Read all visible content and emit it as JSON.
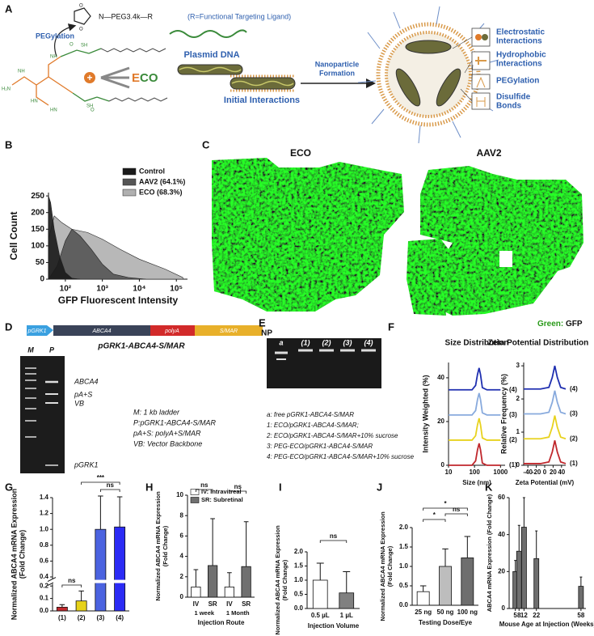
{
  "panel_labels": [
    "A",
    "B",
    "C",
    "D",
    "E",
    "F",
    "G",
    "H",
    "I",
    "J",
    "K"
  ],
  "panel_a": {
    "peg_label": "N—PEG3.4k—R",
    "ligand_note": "(R=Functional Targeting Ligand)",
    "pegylation": "PEGylation",
    "charge": "+",
    "eco_e": "E",
    "eco_co": "CO",
    "chem": [
      "O",
      "O",
      "NH",
      "HN",
      "NH",
      "HN",
      "SH",
      "SH",
      "H₂N",
      "O",
      "O"
    ],
    "plasmid": "Plasmid DNA",
    "initial": "Initial Interactions",
    "formation": [
      "Nanoparticle",
      "Formation"
    ],
    "interactions": [
      [
        "Electrostatic",
        "Interactions"
      ],
      [
        "Hydrophobic",
        "Interactions"
      ],
      [
        "PEGylation"
      ],
      [
        "Disulfide",
        "Bonds"
      ]
    ]
  },
  "panel_c": {
    "eco": "ECO",
    "aav2": "AAV2",
    "green": "Green:",
    "gfp": "GFP"
  },
  "panel_d": {
    "construct": [
      "pGRK1",
      "ABCA4",
      "polyA",
      "S/MAR"
    ],
    "title": "pGRK1-ABCA4-S/MAR",
    "lanes": [
      "M",
      "P"
    ],
    "bands": [
      "ABCA4",
      "pA+S",
      "VB",
      "pGRK1"
    ],
    "legend": [
      "M: 1 kb ladder",
      "P:pGRK1-ABCA4-S/MAR",
      "pA+S: polyA+S/MAR",
      "VB: Vector Backbone"
    ]
  },
  "panel_e": {
    "np": "NP",
    "lanes": [
      "a",
      "(1)",
      "(2)",
      "(3)",
      "(4)"
    ],
    "legend": [
      "a: free pGRK1-ABCA4-S/MAR",
      "1: ECO/pGRK1-ABCA4-S/MAR;",
      "2: ECO/pGRK1-ABCA4-S/MAR+10% sucrose",
      "3: PEG-ECO/pGRK1-ABCA4-S/MAR",
      "4: PEG-ECO/pGRK1-ABCA4-S/MAR+10% sucrose"
    ]
  },
  "chart_data": [
    {
      "type": "area",
      "x_label": "GFP Fluorescent Intensity",
      "y_label": [
        "Cell Count"
      ],
      "xlog": true,
      "xlim": [
        35,
        200000
      ],
      "ylim": [
        0,
        260
      ],
      "xticks": [
        {
          "value": 100,
          "label": "10²"
        },
        {
          "value": 1000,
          "label": "10³"
        },
        {
          "value": 10000,
          "label": "10⁴"
        },
        {
          "value": 100000,
          "label": "10⁵"
        }
      ],
      "yticks": [
        0,
        50,
        100,
        150,
        200,
        250
      ],
      "series": [
        {
          "name": "Control",
          "color": "#1a1a1a",
          "x": [
            35,
            40,
            50,
            70,
            100,
            150,
            250
          ],
          "values": [
            250,
            230,
            150,
            70,
            20,
            3,
            0
          ]
        },
        {
          "name": "AAV2 (64.1%)",
          "color": "#555555",
          "x": [
            35,
            60,
            100,
            150,
            250,
            500,
            1000,
            2000,
            5000,
            15000
          ],
          "values": [
            0,
            40,
            115,
            150,
            130,
            90,
            45,
            15,
            5,
            0
          ]
        },
        {
          "name": "ECO (68.3%)",
          "color": "#b0b0b0",
          "x": [
            35,
            50,
            80,
            150,
            400,
            1000,
            3000,
            10000,
            50000,
            150000
          ],
          "values": [
            120,
            190,
            170,
            150,
            140,
            120,
            90,
            60,
            30,
            5
          ]
        }
      ]
    },
    {
      "type": "line",
      "title": "Size Distribution",
      "x_label": "Size (nm)",
      "y_label": [
        "Intensity Weighted (%)"
      ],
      "xlog": true,
      "xlim": [
        10,
        1500
      ],
      "ylim": [
        0,
        47
      ],
      "xticks": [
        10,
        100,
        1000
      ],
      "yticks": [
        0,
        20,
        40
      ],
      "series": [
        {
          "name": "(1)",
          "color": "#c0282d",
          "x": [
            10,
            80,
            110,
            130,
            150,
            170,
            200,
            300,
            1000
          ],
          "values": [
            0,
            0,
            2,
            7,
            10,
            7,
            1,
            0,
            0
          ]
        },
        {
          "name": "(2)",
          "color": "#e8d21e",
          "x": [
            10,
            80,
            110,
            130,
            150,
            170,
            200,
            300,
            1000
          ],
          "values": [
            11.5,
            11.5,
            13.5,
            18.5,
            21.5,
            18.5,
            12.5,
            11.5,
            11.5
          ]
        },
        {
          "name": "(3)",
          "color": "#88aadd",
          "x": [
            10,
            80,
            110,
            130,
            150,
            170,
            200,
            300,
            1000
          ],
          "values": [
            23,
            23,
            25,
            30,
            33,
            30,
            24,
            23,
            23
          ]
        },
        {
          "name": "(4)",
          "color": "#1f2fb0",
          "x": [
            10,
            80,
            110,
            130,
            150,
            170,
            200,
            300,
            1000
          ],
          "values": [
            34.5,
            34.5,
            36.5,
            41.5,
            44.5,
            41.5,
            35.5,
            34.5,
            34.5
          ]
        }
      ]
    },
    {
      "type": "line",
      "title": "Zeta Potential Distribution",
      "x_label": "Zeta Potential (mV)",
      "y_label": [
        "Relative Frequency (%)"
      ],
      "xlim": [
        -50,
        50
      ],
      "ylim": [
        0,
        3.1
      ],
      "xticks": [
        -40,
        -20,
        0,
        20,
        40
      ],
      "yticks": [
        0,
        1,
        2,
        3
      ],
      "series": [
        {
          "name": "(1)",
          "color": "#c0282d",
          "x": [
            -50,
            -10,
            10,
            18,
            24,
            30,
            38,
            50
          ],
          "values": [
            0.05,
            0.05,
            0.1,
            0.4,
            0.75,
            0.4,
            0.1,
            0.05
          ]
        },
        {
          "name": "(2)",
          "color": "#e8d21e",
          "x": [
            -50,
            -10,
            10,
            18,
            24,
            30,
            38,
            50
          ],
          "values": [
            0.8,
            0.8,
            0.85,
            1.15,
            1.5,
            1.15,
            0.85,
            0.8
          ]
        },
        {
          "name": "(3)",
          "color": "#88aadd",
          "x": [
            -50,
            -10,
            10,
            18,
            24,
            30,
            38,
            50
          ],
          "values": [
            1.55,
            1.55,
            1.6,
            1.9,
            2.25,
            1.9,
            1.6,
            1.55
          ]
        },
        {
          "name": "(4)",
          "color": "#1f2fb0",
          "x": [
            -50,
            -10,
            10,
            18,
            24,
            30,
            38,
            50
          ],
          "values": [
            2.3,
            2.3,
            2.35,
            2.65,
            3.0,
            2.65,
            2.35,
            2.3
          ]
        }
      ]
    },
    {
      "type": "bar",
      "y_label": [
        "Normalized ABCA4 mRNA Expression",
        "(Fold Change)"
      ],
      "categories": [
        "(1)",
        "(2)",
        "(3)",
        "(4)"
      ],
      "values": [
        0.03,
        0.08,
        1.0,
        1.03
      ],
      "errors": [
        0.02,
        0.08,
        0.42,
        0.38
      ],
      "colors": [
        "#c0282d",
        "#e6d21a",
        "#4b63e0",
        "#2b2bf5"
      ],
      "ylim": [
        0,
        1.4
      ],
      "axis_break": [
        0.2,
        0.4
      ],
      "yticks": [
        {
          "value": 0,
          "label": "0.0"
        },
        0.1,
        0.2,
        0.4,
        0.6,
        0.8,
        {
          "value": 1,
          "label": "1.0"
        },
        1.2,
        1.4
      ],
      "annotations": [
        "ns",
        "***",
        "ns"
      ]
    },
    {
      "type": "bar",
      "y_label": [
        "Normalized ABCA4 mRNA Expression",
        "(Fold Change)"
      ],
      "x_label": "Injection Route",
      "categories": [
        "IV",
        "SR",
        "IV",
        "SR"
      ],
      "groups": [
        "1 week",
        "1 Month"
      ],
      "values": [
        1,
        3.1,
        1,
        3.0
      ],
      "errors": [
        1.7,
        4.6,
        1.4,
        4.4
      ],
      "colors": [
        "#ffffff",
        "#707070",
        "#ffffff",
        "#707070"
      ],
      "ylim": [
        0,
        10
      ],
      "yticks": [
        0,
        2,
        4,
        6,
        8,
        10
      ],
      "legend": [
        {
          "name": "IV: Intravitreal",
          "color": "#ffffff"
        },
        {
          "name": "SR: Subretinal",
          "color": "#707070"
        }
      ],
      "annotations": [
        "ns",
        "ns"
      ]
    },
    {
      "type": "bar",
      "y_label": [
        "Normalized ABCA4 mRNA Expression",
        "(Fold Change)"
      ],
      "x_label": "Injection Volume",
      "categories": [
        "0.5 µL",
        "1 µL"
      ],
      "values": [
        1.0,
        0.55
      ],
      "errors": [
        0.6,
        0.75
      ],
      "colors": [
        "#ffffff",
        "#808080"
      ],
      "ylim": [
        0,
        2
      ],
      "yticks": [
        {
          "value": 0,
          "label": "0.0"
        },
        0.5,
        {
          "value": 1,
          "label": "1.0"
        },
        1.5,
        {
          "value": 2,
          "label": "2.0"
        }
      ],
      "annotations": [
        "ns"
      ]
    },
    {
      "type": "bar",
      "y_label": [
        "Normalized ABCA4 mRNA Expression",
        "(Fold Change)"
      ],
      "x_label": "Testing Dose/Eye",
      "categories": [
        "25 ng",
        "50 ng",
        "100 ng"
      ],
      "values": [
        0.35,
        1.0,
        1.22
      ],
      "errors": [
        0.15,
        0.45,
        0.55
      ],
      "colors": [
        "#ffffff",
        "#bdbdbd",
        "#6e6e6e"
      ],
      "ylim": [
        0,
        2
      ],
      "yticks": [
        {
          "value": 0,
          "label": "0.0"
        },
        0.5,
        {
          "value": 1,
          "label": "1.0"
        },
        1.5,
        {
          "value": 2,
          "label": "2.0"
        }
      ],
      "annotations": [
        "*",
        "*",
        "ns"
      ]
    },
    {
      "type": "bar",
      "y_label": [
        "ABCA4 mRNA Expression (Fold Change)"
      ],
      "x_label": "Mouse Age at Injection (Weeks)",
      "x": [
        5,
        8,
        12,
        22,
        58
      ],
      "values": [
        20,
        31,
        44,
        27,
        12
      ],
      "errors": [
        6,
        14,
        16,
        15,
        5
      ],
      "color": "#6e6e6e",
      "xlim": [
        0,
        62
      ],
      "xticks": [
        5,
        8,
        12,
        22,
        58
      ],
      "ylim": [
        0,
        60
      ],
      "yticks": [
        0,
        20,
        40,
        60
      ]
    }
  ]
}
